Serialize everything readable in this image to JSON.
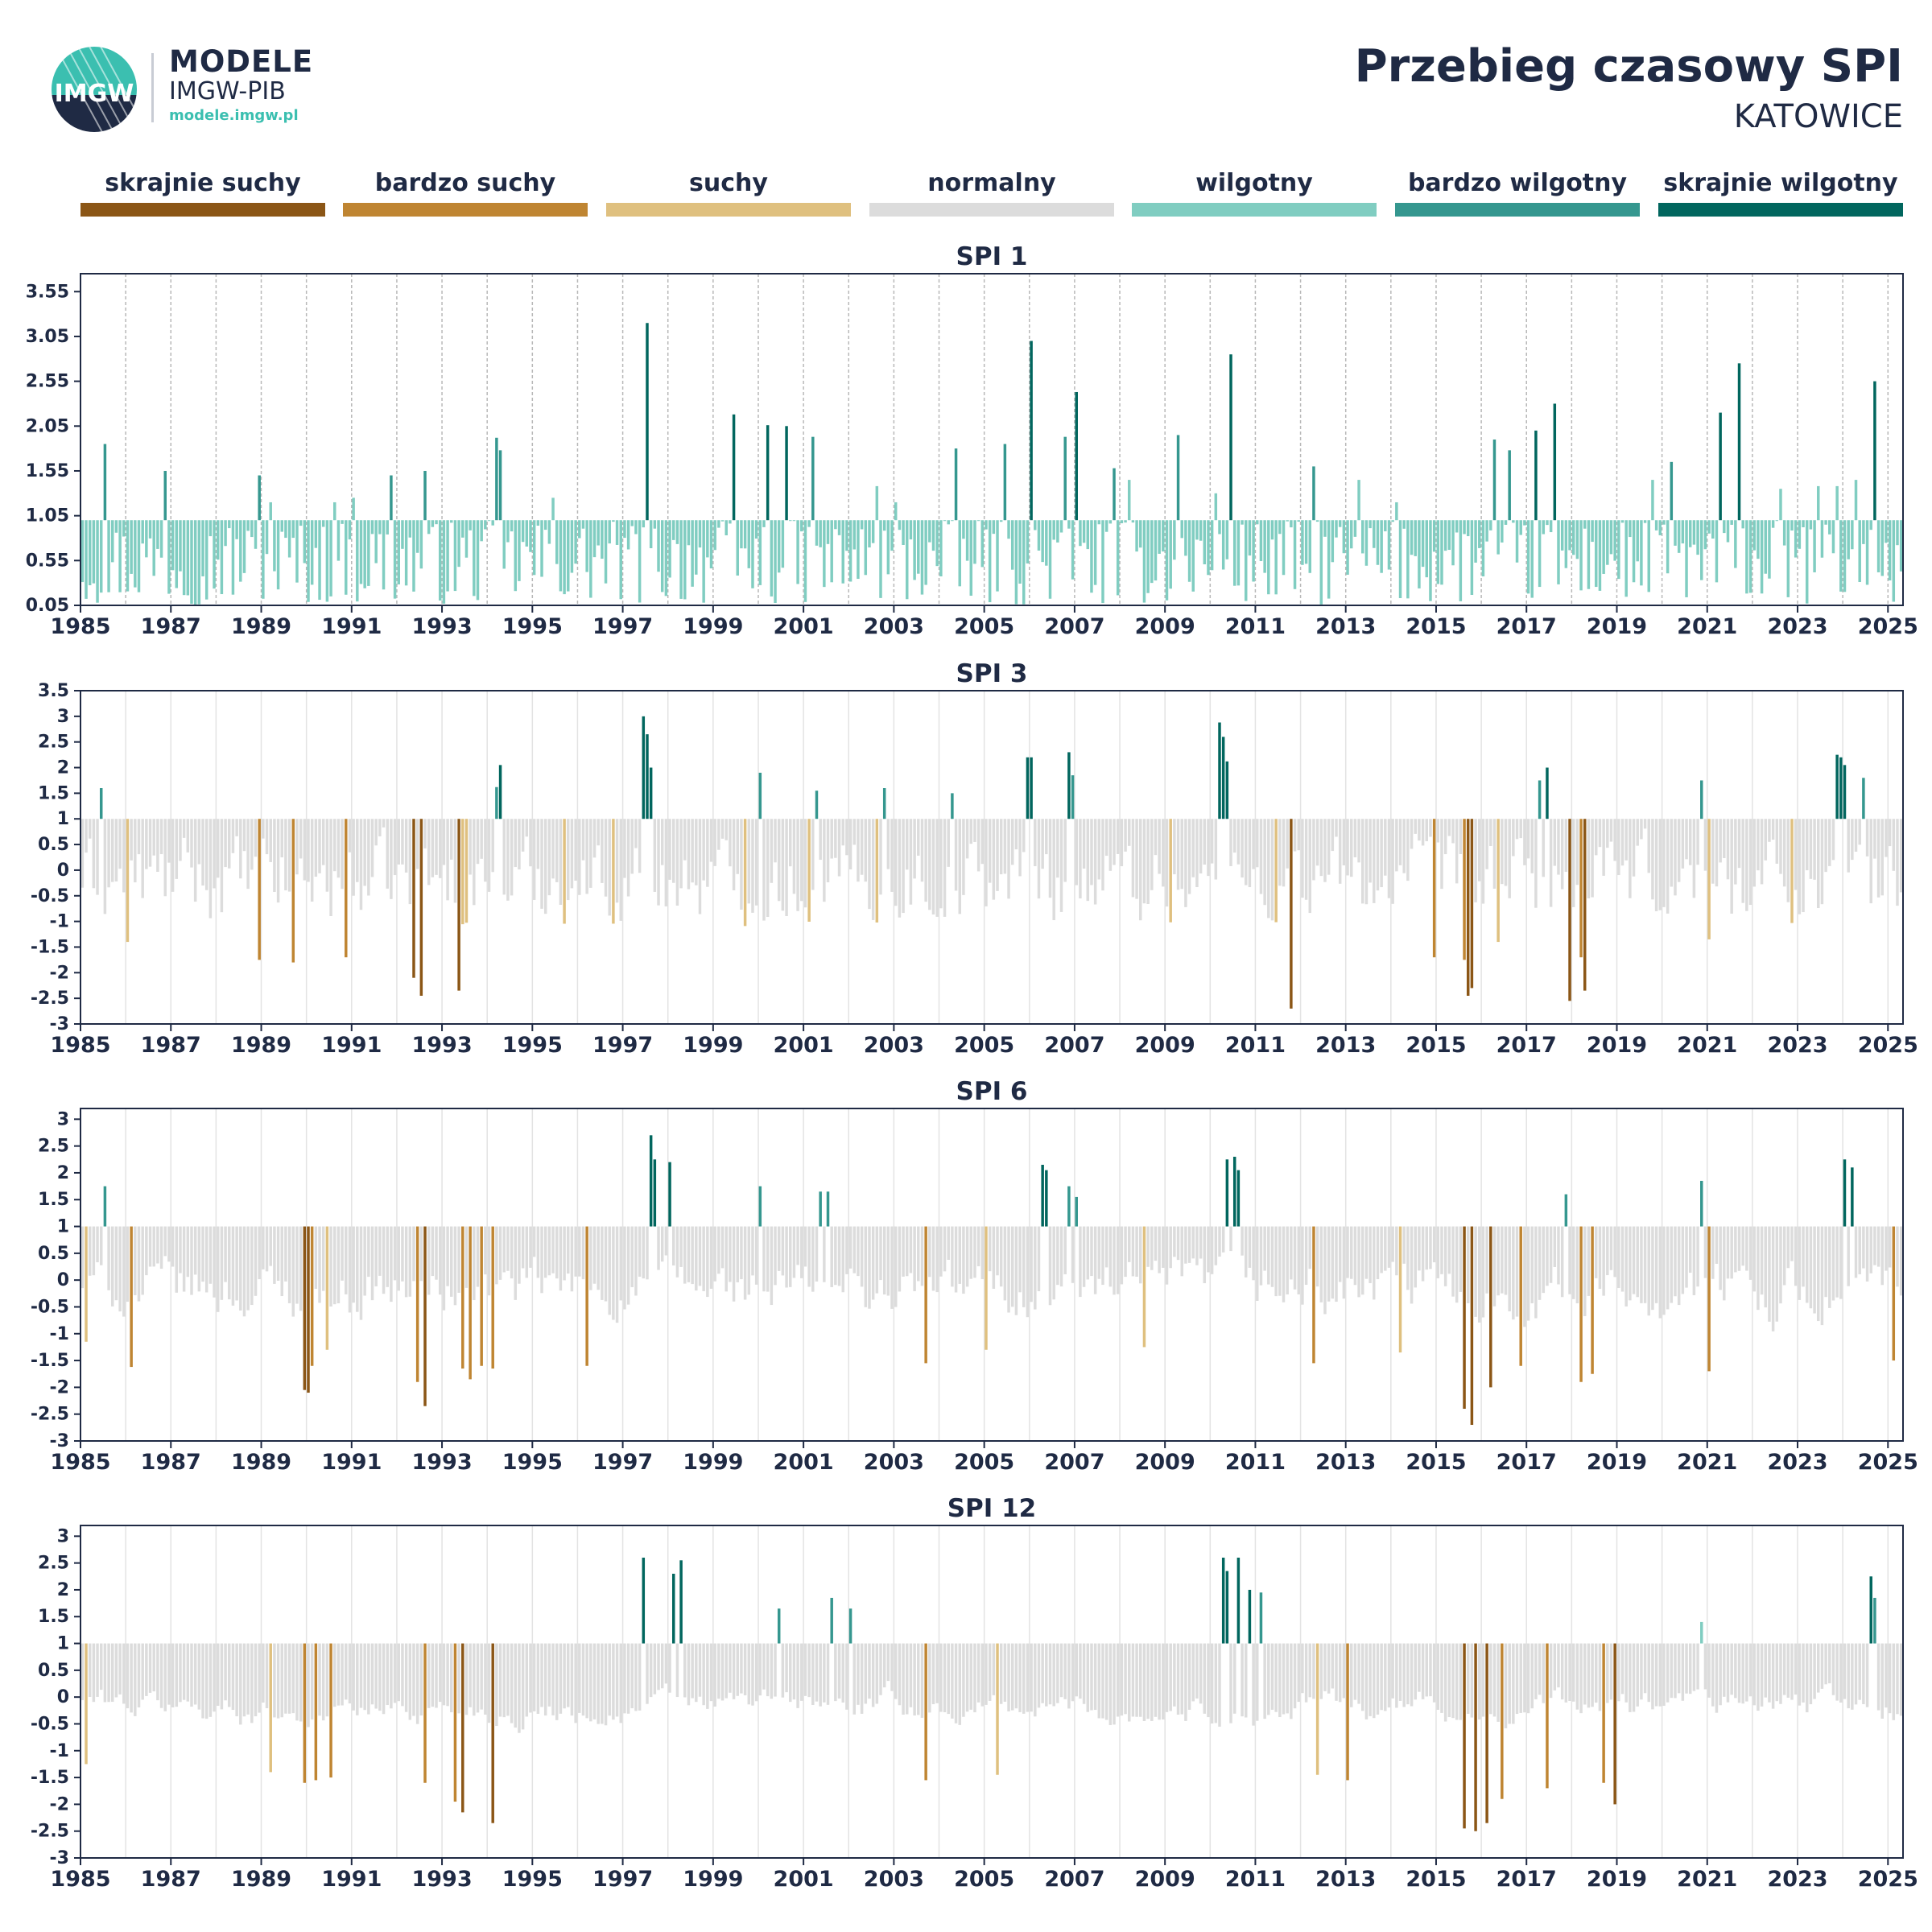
{
  "header": {
    "brand_line1": "MODELE",
    "brand_line2": "IMGW-PIB",
    "brand_url": "modele.imgw.pl",
    "logo_text": "IMGW",
    "title": "Przebieg czasowy SPI",
    "station": "KATOWICE"
  },
  "legend": [
    {
      "label": "skrajnie suchy",
      "color": "#8b5616"
    },
    {
      "label": "bardzo suchy",
      "color": "#bf8532"
    },
    {
      "label": "suchy",
      "color": "#dfc07f"
    },
    {
      "label": "normalny",
      "color": "#dcdcdc"
    },
    {
      "label": "wilgotny",
      "color": "#80cdc1"
    },
    {
      "label": "bardzo wilgotny",
      "color": "#35978f"
    },
    {
      "label": "skrajnie wilgotny",
      "color": "#01665e"
    }
  ],
  "chart_data": [
    {
      "type": "bar",
      "title": "SPI 1",
      "xlabel": "",
      "ylabel": "",
      "x_ticks": [
        "1985",
        "1987",
        "1989",
        "1991",
        "1993",
        "1995",
        "1997",
        "1999",
        "2001",
        "2003",
        "2005",
        "2007",
        "2009",
        "2011",
        "2013",
        "2015",
        "2017",
        "2019",
        "2021",
        "2023",
        "2025"
      ],
      "y_ticks": [
        "0.05",
        "0.55",
        "1.05",
        "1.55",
        "2.05",
        "2.55",
        "3.05",
        "3.55"
      ],
      "ylim": [
        0.05,
        3.75
      ],
      "baseline": 1,
      "grid": "vertical",
      "series": [
        {
          "x": [
            "1985-07",
            "1986-11",
            "1988-12",
            "1989-03",
            "1990-08",
            "1991-01",
            "1991-11",
            "1992-08",
            "1994-03",
            "1994-04",
            "1995-06",
            "1997-07",
            "1999-06",
            "2000-03",
            "2000-08",
            "2001-03",
            "2002-08",
            "2003-01",
            "2004-05",
            "2005-06",
            "2006-01",
            "2006-10",
            "2007-01",
            "2007-11",
            "2008-03",
            "2009-04",
            "2010-02",
            "2010-06",
            "2012-04",
            "2013-04",
            "2014-02",
            "2016-04",
            "2016-08",
            "2017-03",
            "2017-08",
            "2019-10",
            "2020-03",
            "2021-04",
            "2021-09",
            "2022-08",
            "2023-06",
            "2023-11",
            "2024-04",
            "2024-09"
          ],
          "values": [
            1.85,
            1.55,
            1.5,
            1.2,
            1.2,
            1.25,
            1.5,
            1.55,
            1.92,
            1.78,
            1.25,
            3.2,
            2.18,
            2.06,
            2.05,
            1.93,
            1.38,
            1.2,
            1.8,
            1.85,
            3.0,
            1.93,
            2.43,
            1.58,
            1.45,
            1.95,
            1.3,
            2.85,
            1.6,
            1.45,
            1.2,
            1.9,
            1.78,
            2.0,
            2.3,
            1.45,
            1.65,
            2.2,
            2.75,
            1.35,
            1.38,
            1.38,
            1.45,
            2.55
          ]
        }
      ]
    },
    {
      "type": "bar",
      "title": "SPI 3",
      "xlabel": "",
      "ylabel": "",
      "x_ticks": [
        "1985",
        "1987",
        "1989",
        "1991",
        "1993",
        "1995",
        "1997",
        "1999",
        "2001",
        "2003",
        "2005",
        "2007",
        "2009",
        "2011",
        "2013",
        "2015",
        "2017",
        "2019",
        "2021",
        "2023",
        "2025"
      ],
      "y_ticks": [
        "3.5",
        "3",
        "2.5",
        "2",
        "1.5",
        "1",
        "0.5",
        "0",
        "-0.5",
        "-1",
        "-1.5",
        "-2",
        "-2.5",
        "-3"
      ],
      "ylim": [
        -3,
        3.5
      ],
      "baseline": 1,
      "grid": "vertical",
      "series": [
        {
          "x": [
            "1985-06",
            "1986-01",
            "1988-12",
            "1989-09",
            "1990-11",
            "1992-05",
            "1992-07",
            "1993-05",
            "1994-03",
            "1994-04",
            "1997-06",
            "1997-07",
            "1997-08",
            "2000-01",
            "2001-04",
            "2002-10",
            "2004-04",
            "2005-12",
            "2006-01",
            "2006-11",
            "2006-12",
            "2010-03",
            "2010-04",
            "2010-05",
            "2011-10",
            "2014-12",
            "2015-08",
            "2015-09",
            "2015-10",
            "2016-05",
            "2017-04",
            "2017-06",
            "2017-12",
            "2018-03",
            "2018-04",
            "2020-11",
            "2021-01",
            "2023-11",
            "2023-12",
            "2024-01",
            "2024-06"
          ],
          "values": [
            1.6,
            -1.4,
            -1.75,
            -1.8,
            -1.7,
            -2.1,
            -2.45,
            -2.35,
            1.62,
            2.05,
            3.0,
            2.65,
            2.0,
            1.9,
            1.55,
            1.6,
            1.5,
            2.2,
            2.2,
            2.3,
            1.85,
            2.88,
            2.6,
            2.12,
            -2.7,
            -1.7,
            -1.75,
            -2.45,
            -2.3,
            -1.4,
            1.75,
            2.0,
            -2.55,
            -1.7,
            -2.35,
            1.75,
            -1.35,
            2.25,
            2.2,
            2.05,
            1.8
          ]
        }
      ]
    },
    {
      "type": "bar",
      "title": "SPI 6",
      "xlabel": "",
      "ylabel": "",
      "x_ticks": [
        "1985",
        "1987",
        "1989",
        "1991",
        "1993",
        "1995",
        "1997",
        "1999",
        "2001",
        "2003",
        "2005",
        "2007",
        "2009",
        "2011",
        "2013",
        "2015",
        "2017",
        "2019",
        "2021",
        "2023",
        "2025"
      ],
      "y_ticks": [
        "3",
        "2.5",
        "2",
        "1.5",
        "1",
        "0.5",
        "0",
        "-0.5",
        "-1",
        "-1.5",
        "-2",
        "-2.5",
        "-3"
      ],
      "ylim": [
        -3,
        3.2
      ],
      "baseline": 1,
      "grid": "vertical",
      "series": [
        {
          "x": [
            "1985-02",
            "1985-07",
            "1986-02",
            "1989-12",
            "1990-01",
            "1990-02",
            "1990-06",
            "1992-06",
            "1992-08",
            "1993-06",
            "1993-08",
            "1993-11",
            "1994-02",
            "1996-03",
            "1997-08",
            "1997-09",
            "1998-01",
            "2000-01",
            "2001-05",
            "2001-07",
            "2003-09",
            "2005-01",
            "2006-04",
            "2006-05",
            "2006-11",
            "2007-01",
            "2008-07",
            "2010-05",
            "2010-07",
            "2010-08",
            "2012-04",
            "2014-03",
            "2015-08",
            "2015-10",
            "2016-03",
            "2016-11",
            "2017-11",
            "2018-03",
            "2018-06",
            "2020-11",
            "2021-01",
            "2024-01",
            "2024-03",
            "2025-02"
          ],
          "values": [
            -1.15,
            1.75,
            -1.62,
            -2.05,
            -2.1,
            -1.6,
            -1.3,
            -1.9,
            -2.35,
            -1.65,
            -1.85,
            -1.6,
            -1.65,
            -1.6,
            2.7,
            2.25,
            2.2,
            1.75,
            1.65,
            1.65,
            -1.55,
            -1.3,
            2.15,
            2.05,
            1.75,
            1.55,
            -1.25,
            2.25,
            2.3,
            2.05,
            -1.55,
            -1.35,
            -2.4,
            -2.7,
            -2.0,
            -1.6,
            1.6,
            -1.9,
            -1.75,
            1.85,
            -1.7,
            2.25,
            2.1,
            -1.5
          ]
        }
      ]
    },
    {
      "type": "bar",
      "title": "SPI 12",
      "xlabel": "",
      "ylabel": "",
      "x_ticks": [
        "1985",
        "1987",
        "1989",
        "1991",
        "1993",
        "1995",
        "1997",
        "1999",
        "2001",
        "2003",
        "2005",
        "2007",
        "2009",
        "2011",
        "2013",
        "2015",
        "2017",
        "2019",
        "2021",
        "2023",
        "2025"
      ],
      "y_ticks": [
        "3",
        "2.5",
        "2",
        "1.5",
        "1",
        "0.5",
        "0",
        "-0.5",
        "-1",
        "-1.5",
        "-2",
        "-2.5",
        "-3"
      ],
      "ylim": [
        -3,
        3.2
      ],
      "baseline": 1,
      "grid": "vertical",
      "series": [
        {
          "x": [
            "1985-02",
            "1989-03",
            "1989-12",
            "1990-03",
            "1990-07",
            "1992-08",
            "1993-04",
            "1993-06",
            "1994-02",
            "1997-06",
            "1998-02",
            "1998-04",
            "2000-06",
            "2001-08",
            "2002-01",
            "2003-09",
            "2005-04",
            "2010-04",
            "2010-05",
            "2010-08",
            "2010-11",
            "2011-02",
            "2012-05",
            "2013-01",
            "2015-08",
            "2015-11",
            "2016-02",
            "2016-06",
            "2017-06",
            "2018-09",
            "2018-12",
            "2020-11",
            "2024-08",
            "2024-09"
          ],
          "values": [
            -1.25,
            -1.4,
            -1.6,
            -1.55,
            -1.5,
            -1.6,
            -1.95,
            -2.15,
            -2.35,
            2.6,
            2.3,
            2.55,
            1.65,
            1.85,
            1.65,
            -1.55,
            -1.45,
            2.6,
            2.35,
            2.6,
            2.0,
            1.95,
            -1.45,
            -1.55,
            -2.45,
            -2.5,
            -2.35,
            -1.9,
            -1.7,
            -1.6,
            -2.0,
            1.4,
            2.25,
            1.85
          ]
        }
      ]
    }
  ]
}
